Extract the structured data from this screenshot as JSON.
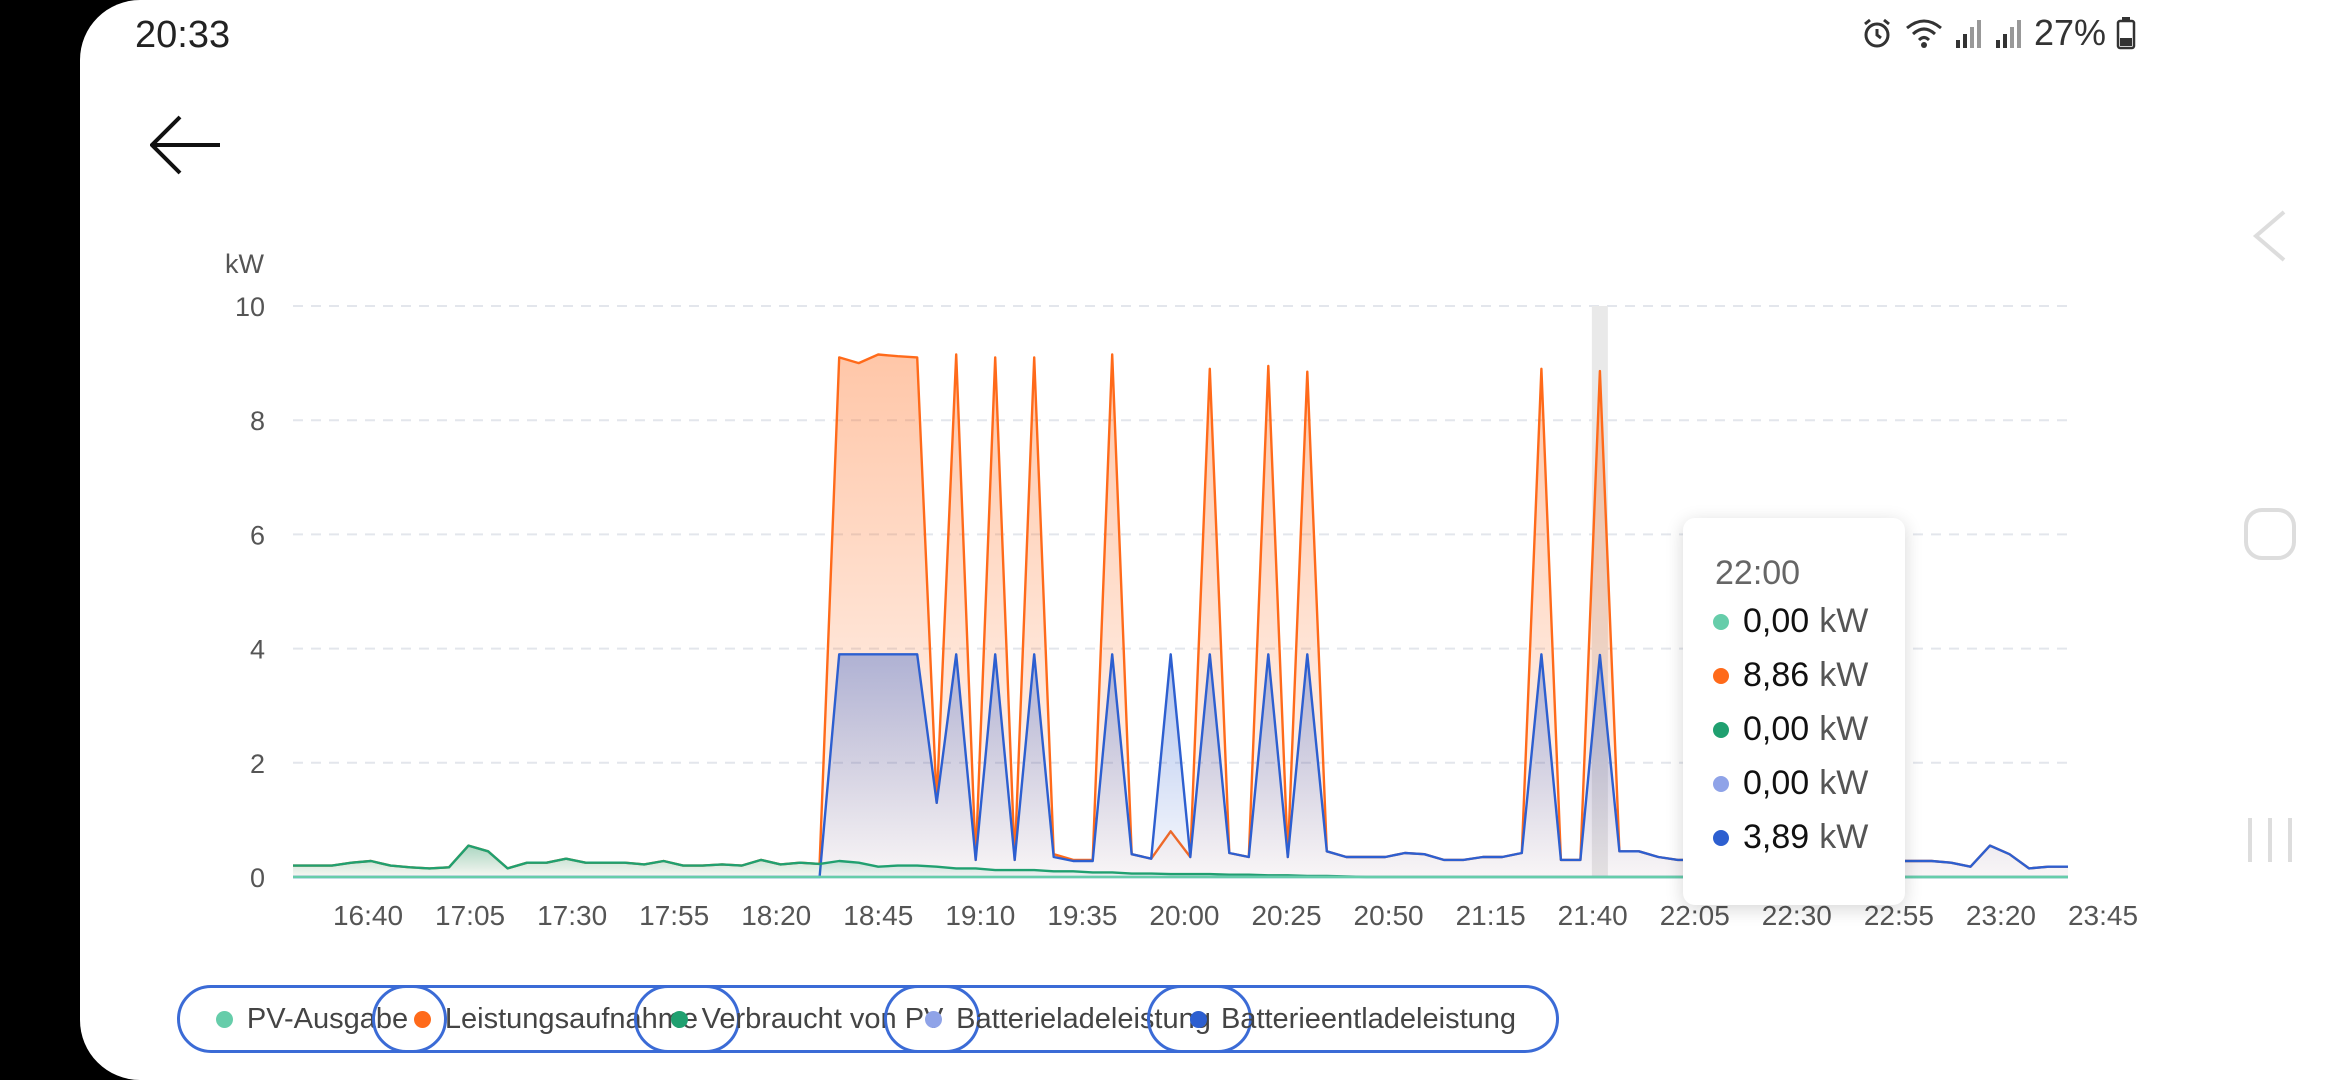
{
  "status_bar": {
    "time": "20:33",
    "battery": "27%"
  },
  "chart_data": {
    "type": "area",
    "ylabel": "kW",
    "ylim": [
      0,
      10
    ],
    "yticks": [
      0,
      2,
      4,
      6,
      8,
      10
    ],
    "xtick_labels": [
      "16:40",
      "17:05",
      "17:30",
      "17:55",
      "18:20",
      "18:45",
      "19:10",
      "19:35",
      "20:00",
      "20:25",
      "20:50",
      "21:15",
      "21:40",
      "22:05",
      "22:30",
      "22:55",
      "23:20",
      "23:45"
    ],
    "grid": true,
    "legend_position": "bottom",
    "series": [
      {
        "name": "PV-Ausgabe",
        "color": "#66cdaa",
        "values": [
          0,
          0,
          0,
          0,
          0,
          0,
          0,
          0,
          0,
          0,
          0,
          0,
          0,
          0,
          0,
          0,
          0,
          0,
          0,
          0,
          0,
          0,
          0,
          0,
          0,
          0,
          0,
          0,
          0,
          0,
          0,
          0,
          0,
          0,
          0,
          0,
          0,
          0,
          0,
          0,
          0,
          0,
          0,
          0,
          0,
          0,
          0,
          0,
          0,
          0,
          0,
          0,
          0,
          0,
          0,
          0,
          0,
          0,
          0,
          0,
          0,
          0,
          0,
          0,
          0,
          0,
          0,
          0,
          0,
          0,
          0,
          0,
          0,
          0,
          0,
          0,
          0,
          0,
          0,
          0,
          0,
          0,
          0,
          0,
          0,
          0,
          0,
          0,
          0,
          0,
          0,
          0
        ]
      },
      {
        "name": "Leistungsaufnahme",
        "color": "#ff6a1a",
        "values": [
          0.2,
          0.2,
          0.2,
          0.25,
          0.28,
          0.2,
          0.17,
          0.15,
          0.17,
          0.55,
          0.45,
          0.15,
          0.25,
          0.25,
          0.32,
          0.25,
          0.25,
          0.25,
          0.22,
          0.28,
          0.2,
          0.2,
          0.22,
          0.2,
          0.3,
          0.22,
          0.25,
          0.23,
          9.1,
          9.0,
          9.15,
          9.12,
          9.1,
          1.3,
          9.15,
          0.3,
          9.1,
          0.3,
          9.1,
          0.4,
          0.3,
          0.3,
          9.15,
          0.4,
          0.32,
          0.8,
          0.35,
          8.9,
          0.42,
          0.35,
          8.95,
          0.35,
          8.85,
          0.45,
          0.35,
          0.35,
          0.35,
          0.42,
          0.4,
          0.3,
          0.3,
          0.35,
          0.35,
          0.42,
          8.9,
          0.3,
          0.3,
          8.86,
          0.45,
          0.45,
          0.35,
          0.3,
          0.3,
          0.3,
          0.3,
          0.3,
          0.3,
          0.3,
          0.3,
          0.28,
          0.28,
          0.28,
          0.28,
          0.28,
          0.28,
          0.25,
          0.18,
          0.55,
          0.4,
          0.15,
          0.18,
          0.18
        ]
      },
      {
        "name": "Verbraucht von PV",
        "color": "#20a070",
        "values": [
          0.2,
          0.2,
          0.2,
          0.25,
          0.28,
          0.2,
          0.17,
          0.15,
          0.17,
          0.55,
          0.45,
          0.15,
          0.25,
          0.25,
          0.32,
          0.25,
          0.25,
          0.25,
          0.22,
          0.28,
          0.2,
          0.2,
          0.22,
          0.2,
          0.3,
          0.22,
          0.25,
          0.23,
          0.28,
          0.25,
          0.18,
          0.2,
          0.2,
          0.18,
          0.15,
          0.15,
          0.12,
          0.12,
          0.12,
          0.1,
          0.1,
          0.08,
          0.08,
          0.06,
          0.06,
          0.05,
          0.05,
          0.05,
          0.04,
          0.04,
          0.03,
          0.03,
          0.02,
          0.02,
          0.01,
          0,
          0,
          0,
          0,
          0,
          0,
          0,
          0,
          0,
          0,
          0,
          0,
          0,
          0,
          0,
          0,
          0,
          0,
          0,
          0,
          0,
          0,
          0,
          0,
          0,
          0,
          0,
          0,
          0,
          0,
          0,
          0,
          0,
          0,
          0,
          0,
          0
        ]
      },
      {
        "name": "Batterieladeleistung",
        "color": "#8fa3e8",
        "values": [
          0,
          0,
          0,
          0,
          0,
          0,
          0,
          0,
          0,
          0,
          0,
          0,
          0,
          0,
          0,
          0,
          0,
          0,
          0,
          0,
          0,
          0,
          0,
          0,
          0,
          0,
          0,
          0,
          0,
          0,
          0,
          0,
          0,
          0,
          0,
          0,
          0,
          0,
          0,
          0,
          0,
          0,
          0,
          0,
          0,
          0,
          0,
          0,
          0,
          0,
          0,
          0,
          0,
          0,
          0,
          0,
          0,
          0,
          0,
          0,
          0,
          0,
          0,
          0,
          0,
          0,
          0,
          0,
          0,
          0,
          0,
          0,
          0,
          0,
          0,
          0,
          0,
          0,
          0,
          0,
          0,
          0,
          0,
          0,
          0,
          0,
          0,
          0,
          0,
          0,
          0,
          0
        ]
      },
      {
        "name": "Batterieentladeleistung",
        "color": "#2d5fd0",
        "values": [
          0,
          0,
          0,
          0,
          0,
          0,
          0,
          0,
          0,
          0,
          0,
          0,
          0,
          0,
          0,
          0,
          0,
          0,
          0,
          0,
          0,
          0,
          0,
          0,
          0,
          0,
          0,
          0,
          3.9,
          3.9,
          3.9,
          3.9,
          3.9,
          1.3,
          3.9,
          0.3,
          3.9,
          0.3,
          3.9,
          0.35,
          0.28,
          0.28,
          3.9,
          0.4,
          0.32,
          3.9,
          0.35,
          3.9,
          0.42,
          0.35,
          3.9,
          0.35,
          3.9,
          0.45,
          0.35,
          0.35,
          0.35,
          0.42,
          0.4,
          0.3,
          0.3,
          0.35,
          0.35,
          0.42,
          3.9,
          0.3,
          0.3,
          3.89,
          0.45,
          0.45,
          0.35,
          0.3,
          0.3,
          0.3,
          0.3,
          0.3,
          0.3,
          0.3,
          0.3,
          0.28,
          0.28,
          0.28,
          0.28,
          0.28,
          0.28,
          0.25,
          0.18,
          0.55,
          0.4,
          0.15,
          0.18,
          0.18
        ]
      }
    ],
    "highlight_index": 67
  },
  "tooltip": {
    "time": "22:00",
    "rows": [
      {
        "value": "0,00",
        "unit": "kW",
        "color": "#66cdaa"
      },
      {
        "value": "8,86",
        "unit": "kW",
        "color": "#ff6a1a"
      },
      {
        "value": "0,00",
        "unit": "kW",
        "color": "#20a070"
      },
      {
        "value": "0,00",
        "unit": "kW",
        "color": "#8fa3e8"
      },
      {
        "value": "3,89",
        "unit": "kW",
        "color": "#2d5fd0"
      }
    ]
  },
  "legend": [
    {
      "label": "PV-Ausgabe",
      "color": "#66cdaa"
    },
    {
      "label": "Leistungsaufnahme",
      "color": "#ff6a1a"
    },
    {
      "label": "Verbraucht von PV",
      "color": "#20a070"
    },
    {
      "label": "Batterieladeleistung",
      "color": "#8fa3e8"
    },
    {
      "label": "Batterieentladeleistung",
      "color": "#2d5fd0"
    }
  ]
}
